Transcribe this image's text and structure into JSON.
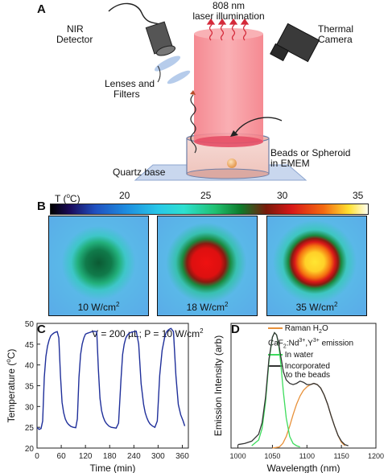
{
  "panel_a": {
    "label": "A",
    "laser_line1": "808 nm",
    "laser_line2": "laser illumination",
    "nir_line1": "NIR",
    "nir_line2": "Detector",
    "thermal_line1": "Thermal",
    "thermal_line2": "Camera",
    "lenses_line1": "Lenses and",
    "lenses_line2": "Filters",
    "beads_line1": "Beads or Spheroid",
    "beads_line2": "in EMEM",
    "quartz": "Quartz base"
  },
  "panel_b": {
    "label": "B",
    "scale_title": "T (",
    "scale_unit_sup": "o",
    "scale_unit_end": "C)",
    "scale_ticks": [
      "20",
      "25",
      "30",
      "35"
    ],
    "images": [
      {
        "power": "10",
        "unit": "W/cm",
        "sup": "2",
        "center_color": "#0b5a33"
      },
      {
        "power": "18",
        "unit": "W/cm",
        "sup": "2",
        "center_color": "#ee1111"
      },
      {
        "power": "35",
        "unit": "W/cm",
        "sup": "2",
        "center_color": "#ffe632"
      }
    ]
  },
  "panel_c_label": "C",
  "panel_c_annotation": "V = 200 µL; P = 10 W/cm",
  "panel_c_annotation_sup": "2",
  "panel_d_label": "D",
  "panel_d_legend": {
    "raman": "Raman H",
    "raman_sub": "2",
    "raman_end": "O",
    "emission_pre": "CaF",
    "emission_sub": "2",
    "emission_mid": ":Nd",
    "emission_sup1": "3+",
    "emission_mid2": ",Y",
    "emission_sup2": "3+",
    "emission_end": " emission",
    "in_water": "In water",
    "beads_line1": "Incorporated",
    "beads_line2": "to the beads"
  },
  "chart_data": [
    {
      "type": "line",
      "xlabel": "Time (min)",
      "ylabel": "Temperature (",
      "ylabel_sup": "o",
      "ylabel_end": "C)",
      "xlim": [
        0,
        375
      ],
      "ylim": [
        20,
        50
      ],
      "xticks": [
        "0",
        "60",
        "120",
        "180",
        "240",
        "300",
        "360"
      ],
      "yticks": [
        "20",
        "25",
        "30",
        "35",
        "40",
        "45",
        "50"
      ],
      "series": [
        {
          "color": "#1f2f9a",
          "x": [
            0,
            5,
            10,
            14,
            18,
            22,
            26,
            30,
            34,
            38,
            42,
            46,
            50,
            54,
            58,
            62,
            66,
            70,
            74,
            78,
            84,
            90,
            96,
            100,
            104,
            108,
            112,
            116,
            120,
            124,
            130,
            136,
            142,
            148,
            152,
            156,
            160,
            164,
            168,
            172,
            178,
            184,
            190,
            196,
            202,
            208,
            212,
            216,
            220,
            224,
            228,
            234,
            240,
            246,
            252,
            258,
            264,
            268,
            272,
            276,
            280,
            286,
            292,
            298,
            304,
            310,
            316,
            320,
            324,
            328,
            332,
            338,
            344,
            350,
            356,
            362,
            366
          ],
          "y": [
            25.0,
            24.5,
            24.7,
            26.5,
            37.0,
            42.0,
            44.5,
            46.0,
            47.0,
            47.4,
            47.7,
            47.9,
            48.0,
            46.5,
            37.5,
            31.0,
            28.5,
            27.0,
            26.2,
            25.7,
            25.2,
            25.0,
            24.9,
            27.0,
            37.0,
            42.5,
            45.0,
            46.5,
            47.4,
            47.6,
            47.8,
            48.0,
            48.1,
            48.0,
            39.0,
            32.0,
            29.0,
            27.5,
            26.5,
            25.9,
            25.3,
            25.0,
            24.9,
            24.8,
            26.0,
            36.5,
            42.5,
            45.0,
            46.5,
            47.2,
            47.6,
            47.9,
            48.0,
            48.1,
            45.0,
            35.5,
            30.5,
            28.5,
            27.3,
            26.4,
            25.8,
            25.3,
            25.0,
            26.5,
            37.5,
            43.5,
            46.5,
            47.8,
            48.3,
            48.6,
            48.8,
            48.0,
            37.5,
            30.5,
            28.0,
            26.5,
            25.3
          ]
        }
      ]
    },
    {
      "type": "line",
      "xlabel": "Wavelength (nm)",
      "ylabel": "Emission Intensity (arb)",
      "xlim": [
        990,
        1200
      ],
      "ylim": [
        0,
        1.08
      ],
      "xticks": [
        "1000",
        "1050",
        "1100",
        "1150",
        "1200"
      ],
      "series": [
        {
          "name": "Raman H2O",
          "color": "#e8913a",
          "x": [
            1050,
            1060,
            1065,
            1070,
            1075,
            1080,
            1085,
            1090,
            1095,
            1100,
            1105,
            1110,
            1115,
            1120,
            1125,
            1130,
            1135,
            1140,
            1145,
            1150,
            1155
          ],
          "y": [
            0.0,
            0.01,
            0.04,
            0.1,
            0.19,
            0.29,
            0.38,
            0.45,
            0.5,
            0.53,
            0.55,
            0.56,
            0.55,
            0.52,
            0.46,
            0.38,
            0.28,
            0.19,
            0.11,
            0.05,
            0.02
          ]
        },
        {
          "name": "In water",
          "color": "#3ddc5c",
          "x": [
            1020,
            1030,
            1035,
            1040,
            1045,
            1050,
            1053,
            1056,
            1059,
            1062,
            1066,
            1070,
            1075,
            1080,
            1085,
            1090
          ],
          "y": [
            0.02,
            0.07,
            0.17,
            0.4,
            0.75,
            0.96,
            1.0,
            0.98,
            0.9,
            0.74,
            0.48,
            0.26,
            0.1,
            0.04,
            0.02,
            0.01
          ],
          "legend_group": "emission"
        },
        {
          "name": "Incorporated to the beads",
          "color": "#333333",
          "x": [
            1000,
            1010,
            1020,
            1030,
            1035,
            1040,
            1045,
            1050,
            1053,
            1056,
            1059,
            1062,
            1066,
            1070,
            1075,
            1080,
            1085,
            1090,
            1095,
            1100,
            1105,
            1110,
            1115,
            1120,
            1125,
            1130,
            1135,
            1140,
            1145,
            1150,
            1155,
            1160
          ],
          "y": [
            0.03,
            0.04,
            0.06,
            0.12,
            0.22,
            0.44,
            0.77,
            0.96,
            1.0,
            0.98,
            0.91,
            0.8,
            0.66,
            0.59,
            0.56,
            0.55,
            0.56,
            0.58,
            0.57,
            0.55,
            0.55,
            0.56,
            0.55,
            0.52,
            0.46,
            0.38,
            0.28,
            0.19,
            0.11,
            0.06,
            0.03,
            0.02
          ],
          "legend_group": "emission"
        }
      ]
    }
  ]
}
